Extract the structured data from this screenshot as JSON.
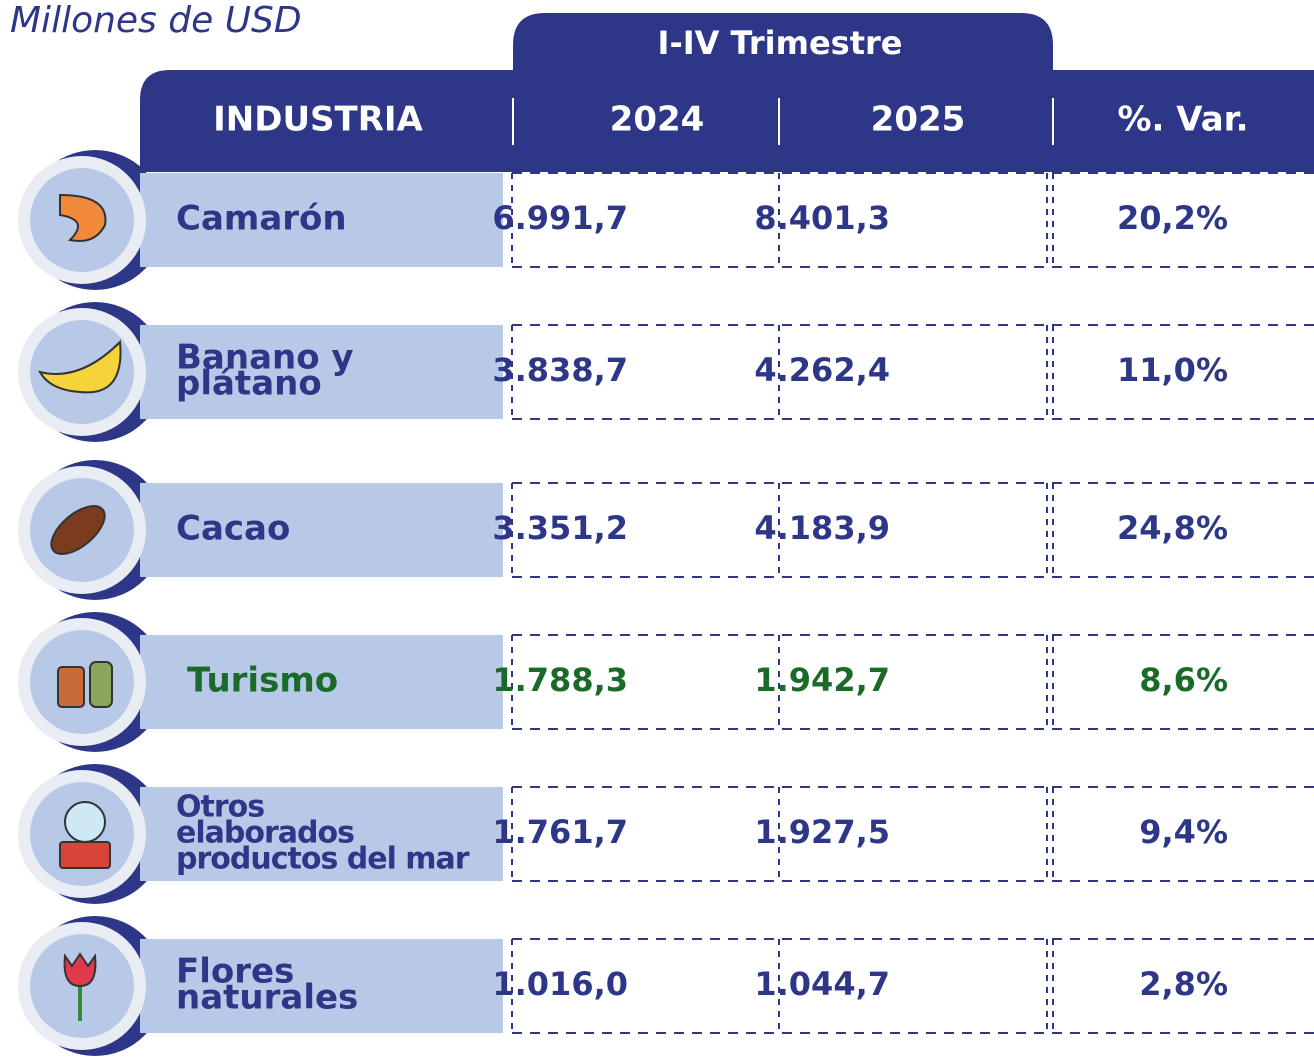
{
  "unit": "Millones de USD",
  "header": {
    "group": "I-IV Trimestre",
    "columns": [
      "INDUSTRIA",
      "2024",
      "2025",
      "%. Var."
    ]
  },
  "table": {
    "rows": [
      {
        "name": [
          "Camarón"
        ],
        "values": [
          "6.991,7",
          "8.401,3",
          "20,2%"
        ],
        "color": "#2e3787"
      },
      {
        "name": [
          "Banano y",
          "plátano"
        ],
        "values": [
          "3.838,7",
          "4.262,4",
          "11,0%"
        ],
        "color": "#2e3787"
      },
      {
        "name": [
          "Cacao"
        ],
        "values": [
          "3.351,2",
          "4.183,9",
          "24,8%"
        ],
        "color": "#2e3787"
      },
      {
        "name": [
          "Turismo"
        ],
        "values": [
          "1.788,3",
          "1.942,7",
          "8,6%"
        ],
        "color": "#1a6b2a"
      },
      {
        "name": [
          "Otros",
          "elaborados",
          "productos del mar"
        ],
        "values": [
          "1.761,7",
          "1.927,5",
          "9,4%"
        ],
        "color": "#2e3787"
      },
      {
        "name": [
          "Flores",
          "naturales"
        ],
        "values": [
          "1.016,0",
          "1.044,7",
          "2,8%"
        ],
        "color": "#2e3787"
      }
    ]
  }
}
